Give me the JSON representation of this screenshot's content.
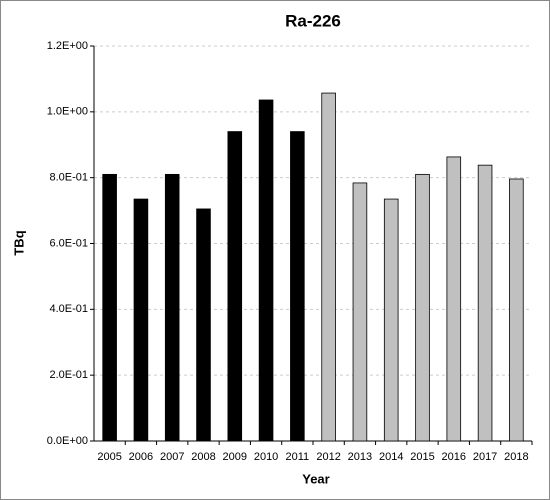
{
  "chart_data": {
    "type": "bar",
    "title": "Ra-226",
    "x_label": "Year",
    "y_label": "TBq",
    "categories": [
      "2005",
      "2006",
      "2007",
      "2008",
      "2009",
      "2010",
      "2011",
      "2012",
      "2013",
      "2014",
      "2015",
      "2016",
      "2017",
      "2018"
    ],
    "values": [
      0.81,
      0.735,
      0.81,
      0.705,
      0.94,
      1.036,
      0.94,
      1.057,
      0.784,
      0.735,
      0.81,
      0.863,
      0.838,
      0.796
    ],
    "colors": [
      "#000000",
      "#000000",
      "#000000",
      "#000000",
      "#000000",
      "#000000",
      "#000000",
      "#c0c0c0",
      "#c0c0c0",
      "#c0c0c0",
      "#c0c0c0",
      "#c0c0c0",
      "#c0c0c0",
      "#c0c0c0"
    ],
    "ylim": [
      0,
      1.2
    ],
    "yticks": [
      {
        "value": 0,
        "label": "0.0E+00"
      },
      {
        "value": 0.2,
        "label": "2.0E-01"
      },
      {
        "value": 0.4,
        "label": "4.0E-01"
      },
      {
        "value": 0.6,
        "label": "6.0E-01"
      },
      {
        "value": 0.8,
        "label": "8.0E-01"
      },
      {
        "value": 1.0,
        "label": "1.0E+00"
      },
      {
        "value": 1.2,
        "label": "1.2E+00"
      }
    ],
    "grid": true
  }
}
